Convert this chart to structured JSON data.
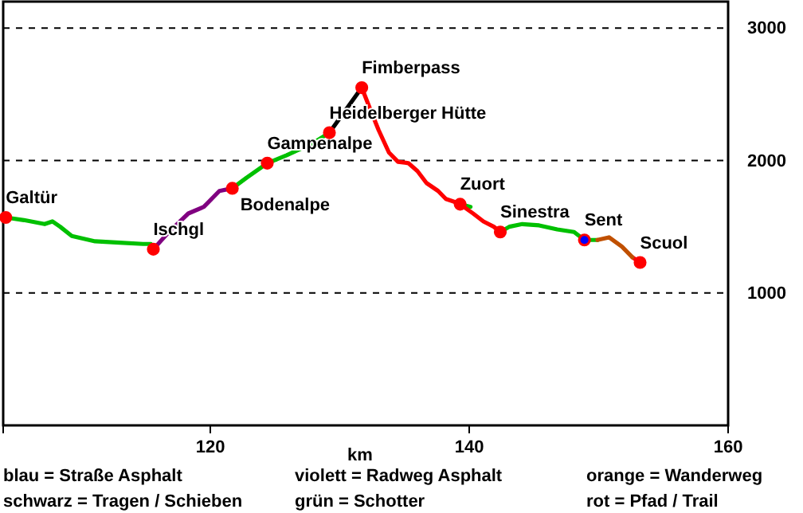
{
  "chart_data": {
    "type": "line",
    "xlabel": "km",
    "xlim": [
      104,
      160
    ],
    "xticks": [
      120,
      140,
      160
    ],
    "ylim": [
      0,
      3200
    ],
    "yticks": [
      1000,
      2000,
      3000
    ],
    "grid": "y",
    "line_style": "solid",
    "series": [
      {
        "color": "#00c000",
        "x": [
          104.2,
          105.6,
          107.2,
          107.8,
          108.4,
          109.3,
          111.1,
          113.0,
          114.8,
          115.4,
          115.6,
          118,
          121.7,
          122.8,
          124.4,
          125.9,
          127.9,
          129.2,
          135,
          139.3,
          140.1,
          141,
          142.4,
          143.1,
          144.1,
          145.4,
          146.8,
          148.1,
          148.9,
          149.9
        ],
        "values": [
          1570,
          1550,
          1520,
          1540,
          1500,
          1430,
          1390,
          1380,
          1370,
          1370,
          1330,
          null,
          1790,
          1870,
          1980,
          2040,
          2130,
          2210,
          null,
          1670,
          1650,
          null,
          1460,
          1500,
          1520,
          1510,
          1480,
          1460,
          1400,
          1400
        ]
      },
      {
        "color": "#800080",
        "x": [
          115.6,
          116.7,
          118.3,
          119.5,
          120.7,
          121.7
        ],
        "values": [
          1330,
          1450,
          1600,
          1650,
          1770,
          1790
        ]
      },
      {
        "color": "#000000",
        "x": [
          129.2,
          131.7
        ],
        "values": [
          2210,
          2550
        ]
      },
      {
        "color": "#ff0000",
        "x": [
          131.7,
          132.3,
          133.0,
          133.8,
          134.5,
          135.3,
          136.0,
          136.7,
          137.6,
          138.2,
          139.1,
          139.3,
          140.3,
          141.1,
          141.9,
          142.4,
          147,
          152.6,
          153.2
        ],
        "values": [
          2550,
          2400,
          2230,
          2060,
          1990,
          1980,
          1920,
          1830,
          1770,
          1710,
          1680,
          1670,
          1600,
          1540,
          1500,
          1460,
          null,
          1270,
          1230
        ]
      },
      {
        "color": "#c05000",
        "x": [
          149.9,
          150.8,
          151.8,
          152.6
        ],
        "values": [
          1400,
          1420,
          1350,
          1270
        ]
      },
      {
        "type": "scatter",
        "marker": "circle",
        "x": [
          104.2,
          115.6,
          121.7,
          124.4,
          129.2,
          131.7,
          139.3,
          142.4,
          148.9,
          153.2
        ],
        "values": [
          1570,
          1330,
          1790,
          1980,
          2210,
          2550,
          1670,
          1460,
          1400,
          1230
        ],
        "colors": [
          "#ff0000",
          "#ff0000",
          "#ff0000",
          "#ff0000",
          "#ff0000",
          "#ff0000",
          "#ff0000",
          "#ff0000",
          "#0000ff",
          "#ff0000"
        ]
      }
    ],
    "annotations": [
      {
        "text": "Galtür",
        "x": 104.2,
        "y": 1570
      },
      {
        "text": "Ischgl",
        "x": 115.6,
        "y": 1330
      },
      {
        "text": "Bodenalpe",
        "x": 121.7,
        "y": 1790
      },
      {
        "text": "Gampenalpe",
        "x": 124.4,
        "y": 1980
      },
      {
        "text": "Heidelberger Hütte",
        "x": 129.2,
        "y": 2210
      },
      {
        "text": "Fimberpass",
        "x": 131.7,
        "y": 2550
      },
      {
        "text": "Zuort",
        "x": 139.3,
        "y": 1670
      },
      {
        "text": "Sinestra",
        "x": 142.4,
        "y": 1460
      },
      {
        "text": "Sent",
        "x": 148.9,
        "y": 1400
      },
      {
        "text": "Scuol",
        "x": 153.2,
        "y": 1230
      },
      "blau = Straße Asphalt",
      "violett = Radweg Asphalt",
      "orange = Wanderweg",
      "schwarz = Tragen / Schieben",
      "grün = Schotter",
      "rot = Pfad / Trail"
    ]
  }
}
